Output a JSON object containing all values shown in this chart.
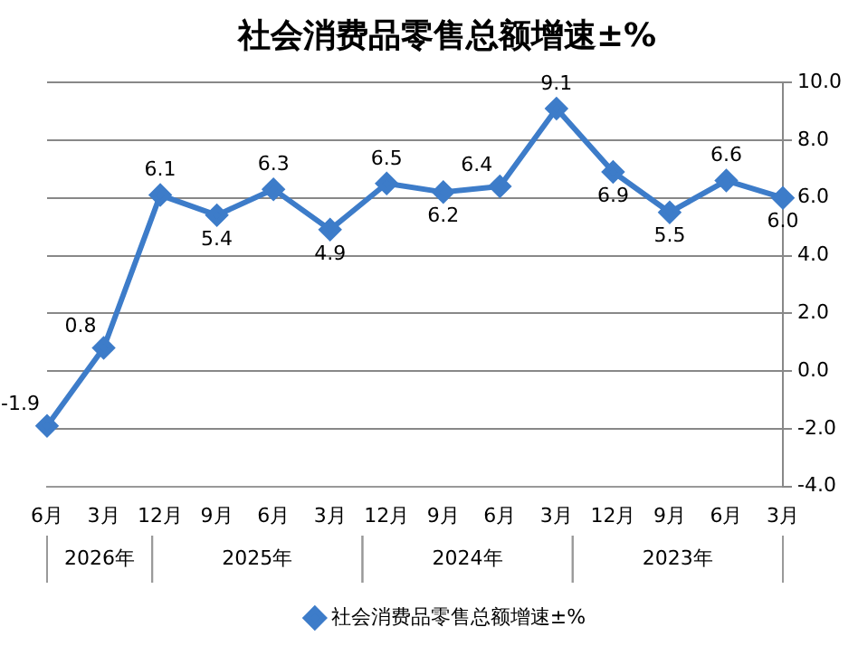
{
  "chart_data": {
    "type": "line",
    "title": "社会消费品零售总额增速±%",
    "categories": [
      "6月",
      "3月",
      "12月",
      "9月",
      "6月",
      "3月",
      "12月",
      "9月",
      "6月",
      "3月",
      "12月",
      "9月",
      "6月",
      "3月"
    ],
    "series": [
      {
        "name": "社会消费品零售总额增速±%",
        "color": "#3d7cc9",
        "values": [
          -1.9,
          0.8,
          6.1,
          5.4,
          6.3,
          4.9,
          6.5,
          6.2,
          6.4,
          9.1,
          6.9,
          5.5,
          6.6,
          6.0
        ],
        "value_labels": [
          "-1.9",
          "0.8",
          "6.1",
          "5.4",
          "6.3",
          "4.9",
          "6.5",
          "6.2",
          "6.4",
          "9.1",
          "6.9",
          "5.5",
          "6.6",
          "6.0"
        ]
      }
    ],
    "ylim": [
      -4,
      10
    ],
    "yticks": [
      {
        "value": 10,
        "label": "10.0"
      },
      {
        "value": 8,
        "label": "8.0"
      },
      {
        "value": 6,
        "label": "6.0"
      },
      {
        "value": 4,
        "label": "4.0"
      },
      {
        "value": 2,
        "label": "2.0"
      },
      {
        "value": 0,
        "label": "0.0"
      },
      {
        "value": -2,
        "label": "-2.0"
      },
      {
        "value": -4,
        "label": "-4.0"
      }
    ],
    "annotations": [
      "2026年",
      "2025年",
      "2024年",
      "2023年"
    ],
    "grid": "y",
    "legend": "bottom",
    "marker": "diamond",
    "line_style": "solid"
  }
}
